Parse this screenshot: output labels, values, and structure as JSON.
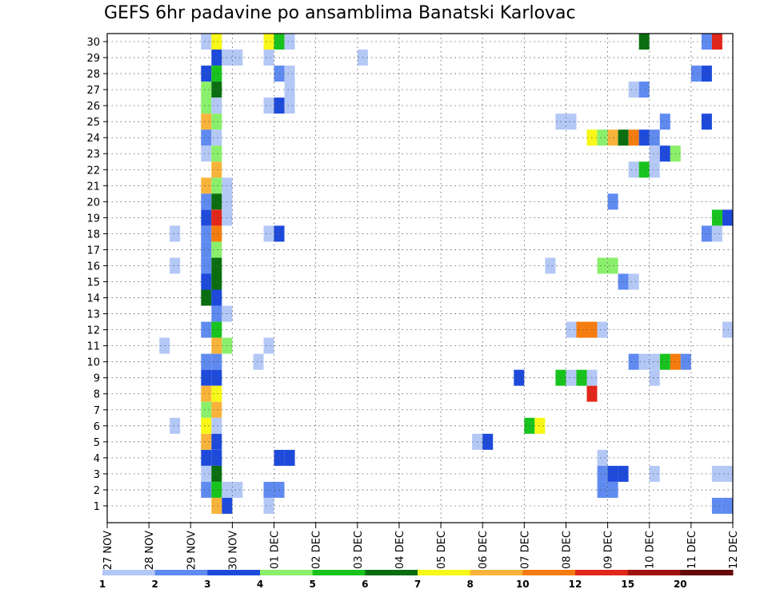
{
  "chart_data": {
    "type": "heatmap",
    "title": "GEFS 6hr padavine po ansamblima Banatski Karlovac",
    "xlabel": "",
    "ylabel": "",
    "x_tick_labels": [
      "27 NOV",
      "28 NOV",
      "29 NOV",
      "30 NOV",
      "01 DEC",
      "02 DEC",
      "03 DEC",
      "04 DEC",
      "05 DEC",
      "06 DEC",
      "07 DEC",
      "08 DEC",
      "09 DEC",
      "10 DEC",
      "11 DEC",
      "12 DEC"
    ],
    "y_tick_labels": [
      "1",
      "2",
      "3",
      "4",
      "5",
      "6",
      "7",
      "8",
      "9",
      "10",
      "11",
      "12",
      "13",
      "14",
      "15",
      "16",
      "17",
      "18",
      "19",
      "20",
      "21",
      "22",
      "23",
      "24",
      "25",
      "26",
      "27",
      "28",
      "29",
      "30"
    ],
    "grid": true,
    "legend_position": "bottom",
    "colorbar_levels": [
      "1",
      "2",
      "3",
      "4",
      "5",
      "6",
      "7",
      "8",
      "10",
      "12",
      "15",
      "20"
    ],
    "colorbar_colors": [
      "#b4c8f6",
      "#5f8af0",
      "#1e4adb",
      "#8aef6a",
      "#18c31e",
      "#0a6e10",
      "#f7f718",
      "#f8b43a",
      "#f57c0e",
      "#e2261a",
      "#a0120e",
      "#640a0a"
    ],
    "x_range_steps": [
      0,
      62
    ],
    "y_range": [
      1,
      30
    ],
    "cell_units": "6-hour steps from 27 NOV 00Z; values = colorbar class index 0-11",
    "cells": [
      {
        "m": 30,
        "s": 9,
        "c": 0
      },
      {
        "m": 30,
        "s": 10,
        "c": 6
      },
      {
        "m": 30,
        "s": 15,
        "c": 6
      },
      {
        "m": 30,
        "s": 16,
        "c": 4
      },
      {
        "m": 30,
        "s": 17,
        "c": 0
      },
      {
        "m": 30,
        "s": 51,
        "c": 5
      },
      {
        "m": 30,
        "s": 57,
        "c": 1
      },
      {
        "m": 30,
        "s": 58,
        "c": 9
      },
      {
        "m": 30,
        "s": 65,
        "c": 3
      },
      {
        "m": 30,
        "s": 66,
        "c": 7
      },
      {
        "m": 30,
        "s": 67,
        "c": 8
      },
      {
        "m": 30,
        "s": 68,
        "c": 11
      },
      {
        "m": 30,
        "s": 69,
        "c": 5
      },
      {
        "m": 29,
        "s": 10,
        "c": 2
      },
      {
        "m": 29,
        "s": 11,
        "c": 0
      },
      {
        "m": 29,
        "s": 12,
        "c": 0
      },
      {
        "m": 29,
        "s": 15,
        "c": 0
      },
      {
        "m": 29,
        "s": 24,
        "c": 0
      },
      {
        "m": 28,
        "s": 9,
        "c": 2
      },
      {
        "m": 28,
        "s": 10,
        "c": 4
      },
      {
        "m": 28,
        "s": 16,
        "c": 1
      },
      {
        "m": 28,
        "s": 17,
        "c": 0
      },
      {
        "m": 28,
        "s": 56,
        "c": 1
      },
      {
        "m": 28,
        "s": 57,
        "c": 2
      },
      {
        "m": 27,
        "s": 9,
        "c": 3
      },
      {
        "m": 27,
        "s": 10,
        "c": 5
      },
      {
        "m": 27,
        "s": 17,
        "c": 0
      },
      {
        "m": 27,
        "s": 50,
        "c": 0
      },
      {
        "m": 27,
        "s": 51,
        "c": 1
      },
      {
        "m": 27,
        "s": 68,
        "c": 0
      },
      {
        "m": 27,
        "s": 69,
        "c": 2
      },
      {
        "m": 26,
        "s": 9,
        "c": 3
      },
      {
        "m": 26,
        "s": 10,
        "c": 0
      },
      {
        "m": 26,
        "s": 15,
        "c": 0
      },
      {
        "m": 26,
        "s": 16,
        "c": 2
      },
      {
        "m": 26,
        "s": 17,
        "c": 0
      },
      {
        "m": 26,
        "s": 67,
        "c": 0
      },
      {
        "m": 25,
        "s": 9,
        "c": 7
      },
      {
        "m": 25,
        "s": 10,
        "c": 3
      },
      {
        "m": 25,
        "s": 43,
        "c": 0
      },
      {
        "m": 25,
        "s": 44,
        "c": 0
      },
      {
        "m": 25,
        "s": 53,
        "c": 1
      },
      {
        "m": 25,
        "s": 57,
        "c": 2
      },
      {
        "m": 25,
        "s": 62,
        "c": 0
      },
      {
        "m": 24,
        "s": 9,
        "c": 1
      },
      {
        "m": 24,
        "s": 10,
        "c": 0
      },
      {
        "m": 24,
        "s": 46,
        "c": 6
      },
      {
        "m": 24,
        "s": 47,
        "c": 3
      },
      {
        "m": 24,
        "s": 48,
        "c": 7
      },
      {
        "m": 24,
        "s": 49,
        "c": 5
      },
      {
        "m": 24,
        "s": 50,
        "c": 8
      },
      {
        "m": 24,
        "s": 51,
        "c": 2
      },
      {
        "m": 24,
        "s": 52,
        "c": 1
      },
      {
        "m": 24,
        "s": 66,
        "c": 0
      },
      {
        "m": 24,
        "s": 69,
        "c": 1
      },
      {
        "m": 24,
        "s": 70,
        "c": 0
      },
      {
        "m": 23,
        "s": 9,
        "c": 0
      },
      {
        "m": 23,
        "s": 10,
        "c": 3
      },
      {
        "m": 23,
        "s": 52,
        "c": 0
      },
      {
        "m": 23,
        "s": 53,
        "c": 2
      },
      {
        "m": 23,
        "s": 54,
        "c": 3
      },
      {
        "m": 22,
        "s": 10,
        "c": 7
      },
      {
        "m": 22,
        "s": 50,
        "c": 0
      },
      {
        "m": 22,
        "s": 51,
        "c": 4
      },
      {
        "m": 22,
        "s": 52,
        "c": 0
      },
      {
        "m": 21,
        "s": 9,
        "c": 7
      },
      {
        "m": 21,
        "s": 10,
        "c": 3
      },
      {
        "m": 21,
        "s": 11,
        "c": 0
      },
      {
        "m": 21,
        "s": 62,
        "c": 1
      },
      {
        "m": 20,
        "s": 9,
        "c": 1
      },
      {
        "m": 20,
        "s": 10,
        "c": 5
      },
      {
        "m": 20,
        "s": 11,
        "c": 0
      },
      {
        "m": 20,
        "s": 48,
        "c": 1
      },
      {
        "m": 20,
        "s": 63,
        "c": 1
      },
      {
        "m": 20,
        "s": 64,
        "c": 0
      },
      {
        "m": 20,
        "s": 65,
        "c": 0
      },
      {
        "m": 19,
        "s": 9,
        "c": 2
      },
      {
        "m": 19,
        "s": 10,
        "c": 9
      },
      {
        "m": 19,
        "s": 11,
        "c": 0
      },
      {
        "m": 19,
        "s": 58,
        "c": 4
      },
      {
        "m": 19,
        "s": 59,
        "c": 2
      },
      {
        "m": 19,
        "s": 60,
        "c": 0
      },
      {
        "m": 18,
        "s": 6,
        "c": 0
      },
      {
        "m": 18,
        "s": 9,
        "c": 1
      },
      {
        "m": 18,
        "s": 10,
        "c": 8
      },
      {
        "m": 18,
        "s": 15,
        "c": 0
      },
      {
        "m": 18,
        "s": 16,
        "c": 2
      },
      {
        "m": 18,
        "s": 57,
        "c": 1
      },
      {
        "m": 18,
        "s": 58,
        "c": 0
      },
      {
        "m": 17,
        "s": 9,
        "c": 1
      },
      {
        "m": 17,
        "s": 10,
        "c": 3
      },
      {
        "m": 16,
        "s": 6,
        "c": 0
      },
      {
        "m": 16,
        "s": 9,
        "c": 1
      },
      {
        "m": 16,
        "s": 10,
        "c": 5
      },
      {
        "m": 16,
        "s": 42,
        "c": 0
      },
      {
        "m": 16,
        "s": 47,
        "c": 3
      },
      {
        "m": 16,
        "s": 48,
        "c": 3
      },
      {
        "m": 16,
        "s": 60,
        "c": 0
      },
      {
        "m": 16,
        "s": 61,
        "c": 0
      },
      {
        "m": 16,
        "s": 62,
        "c": 1
      },
      {
        "m": 16,
        "s": 63,
        "c": 4
      },
      {
        "m": 16,
        "s": 64,
        "c": 5
      },
      {
        "m": 15,
        "s": 9,
        "c": 2
      },
      {
        "m": 15,
        "s": 10,
        "c": 5
      },
      {
        "m": 15,
        "s": 49,
        "c": 1
      },
      {
        "m": 15,
        "s": 50,
        "c": 0
      },
      {
        "m": 15,
        "s": 64,
        "c": 2
      },
      {
        "m": 15,
        "s": 65,
        "c": 10
      },
      {
        "m": 15,
        "s": 67,
        "c": 8
      },
      {
        "m": 14,
        "s": 9,
        "c": 5
      },
      {
        "m": 14,
        "s": 10,
        "c": 2
      },
      {
        "m": 13,
        "s": 10,
        "c": 1
      },
      {
        "m": 13,
        "s": 11,
        "c": 0
      },
      {
        "m": 12,
        "s": 9,
        "c": 1
      },
      {
        "m": 12,
        "s": 10,
        "c": 4
      },
      {
        "m": 12,
        "s": 44,
        "c": 0
      },
      {
        "m": 12,
        "s": 45,
        "c": 8
      },
      {
        "m": 12,
        "s": 46,
        "c": 8
      },
      {
        "m": 12,
        "s": 47,
        "c": 0
      },
      {
        "m": 12,
        "s": 59,
        "c": 0
      },
      {
        "m": 12,
        "s": 60,
        "c": 2
      },
      {
        "m": 12,
        "s": 62,
        "c": 0
      },
      {
        "m": 11,
        "s": 5,
        "c": 0
      },
      {
        "m": 11,
        "s": 10,
        "c": 7
      },
      {
        "m": 11,
        "s": 11,
        "c": 3
      },
      {
        "m": 11,
        "s": 15,
        "c": 0
      },
      {
        "m": 10,
        "s": 9,
        "c": 1
      },
      {
        "m": 10,
        "s": 10,
        "c": 1
      },
      {
        "m": 10,
        "s": 14,
        "c": 0
      },
      {
        "m": 10,
        "s": 50,
        "c": 1
      },
      {
        "m": 10,
        "s": 51,
        "c": 0
      },
      {
        "m": 10,
        "s": 52,
        "c": 0
      },
      {
        "m": 10,
        "s": 53,
        "c": 4
      },
      {
        "m": 10,
        "s": 54,
        "c": 8
      },
      {
        "m": 10,
        "s": 55,
        "c": 1
      },
      {
        "m": 9,
        "s": 9,
        "c": 2
      },
      {
        "m": 9,
        "s": 10,
        "c": 2
      },
      {
        "m": 9,
        "s": 39,
        "c": 2
      },
      {
        "m": 9,
        "s": 43,
        "c": 4
      },
      {
        "m": 9,
        "s": 44,
        "c": 0
      },
      {
        "m": 9,
        "s": 45,
        "c": 4
      },
      {
        "m": 9,
        "s": 46,
        "c": 0
      },
      {
        "m": 9,
        "s": 52,
        "c": 0
      },
      {
        "m": 8,
        "s": 9,
        "c": 7
      },
      {
        "m": 8,
        "s": 10,
        "c": 6
      },
      {
        "m": 8,
        "s": 46,
        "c": 9
      },
      {
        "m": 8,
        "s": 67,
        "c": 1
      },
      {
        "m": 8,
        "s": 68,
        "c": 6
      },
      {
        "m": 8,
        "s": 69,
        "c": 7
      },
      {
        "m": 7,
        "s": 9,
        "c": 3
      },
      {
        "m": 7,
        "s": 10,
        "c": 7
      },
      {
        "m": 6,
        "s": 6,
        "c": 0
      },
      {
        "m": 6,
        "s": 9,
        "c": 6
      },
      {
        "m": 6,
        "s": 10,
        "c": 0
      },
      {
        "m": 6,
        "s": 40,
        "c": 4
      },
      {
        "m": 6,
        "s": 41,
        "c": 6
      },
      {
        "m": 6,
        "s": 62,
        "c": 0
      },
      {
        "m": 5,
        "s": 9,
        "c": 7
      },
      {
        "m": 5,
        "s": 10,
        "c": 2
      },
      {
        "m": 5,
        "s": 35,
        "c": 0
      },
      {
        "m": 5,
        "s": 36,
        "c": 2
      },
      {
        "m": 4,
        "s": 9,
        "c": 2
      },
      {
        "m": 4,
        "s": 10,
        "c": 2
      },
      {
        "m": 4,
        "s": 16,
        "c": 2
      },
      {
        "m": 4,
        "s": 17,
        "c": 2
      },
      {
        "m": 4,
        "s": 47,
        "c": 0
      },
      {
        "m": 4,
        "s": 63,
        "c": 0
      },
      {
        "m": 3,
        "s": 9,
        "c": 0
      },
      {
        "m": 3,
        "s": 10,
        "c": 5
      },
      {
        "m": 3,
        "s": 47,
        "c": 1
      },
      {
        "m": 3,
        "s": 48,
        "c": 2
      },
      {
        "m": 3,
        "s": 49,
        "c": 2
      },
      {
        "m": 3,
        "s": 52,
        "c": 0
      },
      {
        "m": 3,
        "s": 58,
        "c": 0
      },
      {
        "m": 3,
        "s": 59,
        "c": 0
      },
      {
        "m": 3,
        "s": 60,
        "c": 0
      },
      {
        "m": 2,
        "s": 9,
        "c": 1
      },
      {
        "m": 2,
        "s": 10,
        "c": 4
      },
      {
        "m": 2,
        "s": 11,
        "c": 0
      },
      {
        "m": 2,
        "s": 12,
        "c": 0
      },
      {
        "m": 2,
        "s": 15,
        "c": 1
      },
      {
        "m": 2,
        "s": 16,
        "c": 1
      },
      {
        "m": 2,
        "s": 47,
        "c": 1
      },
      {
        "m": 2,
        "s": 48,
        "c": 1
      },
      {
        "m": 2,
        "s": 62,
        "c": 3
      },
      {
        "m": 2,
        "s": 63,
        "c": 6
      },
      {
        "m": 2,
        "s": 64,
        "c": 0
      },
      {
        "m": 1,
        "s": 10,
        "c": 7
      },
      {
        "m": 1,
        "s": 11,
        "c": 2
      },
      {
        "m": 1,
        "s": 15,
        "c": 0
      },
      {
        "m": 1,
        "s": 58,
        "c": 1
      },
      {
        "m": 1,
        "s": 59,
        "c": 1
      }
    ]
  }
}
